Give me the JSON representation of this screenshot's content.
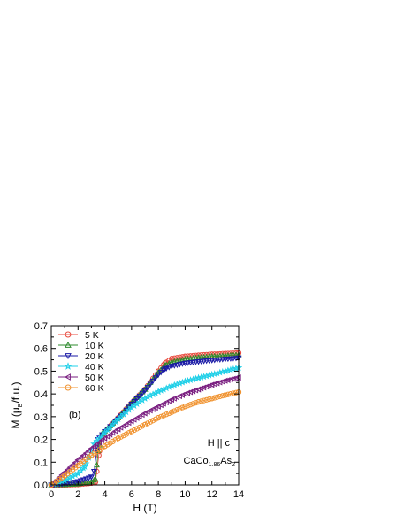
{
  "chart_data": {
    "type": "scatter",
    "title": "",
    "xlabel": "H (T)",
    "ylabel_parts": {
      "pre": "M (",
      "mu": "μ",
      "sub": "B",
      "post": "/f.u.)"
    },
    "xlim": [
      0,
      14
    ],
    "ylim": [
      0,
      0.7
    ],
    "xticks": [
      "0",
      "2",
      "4",
      "6",
      "8",
      "10",
      "12",
      "14"
    ],
    "yticks": [
      "0.0",
      "0.1",
      "0.2",
      "0.3",
      "0.4",
      "0.5",
      "0.6",
      "0.7"
    ],
    "grid": false,
    "legend_placement": "top-left",
    "panel_label": "(b)",
    "field_annotation": "H || c",
    "compound": {
      "parts": [
        "CaCo",
        "1.86",
        "As",
        "2"
      ]
    },
    "series": [
      {
        "name": "5 K",
        "color": "#e8493c",
        "marker": "circle",
        "x": [
          0,
          1,
          2,
          3,
          3.3,
          3.55,
          3.8,
          4.5,
          5,
          6,
          7,
          8,
          8.5,
          9,
          10,
          11,
          12,
          13,
          14
        ],
        "y": [
          0,
          0,
          0.002,
          0.008,
          0.012,
          0.13,
          0.22,
          0.265,
          0.295,
          0.36,
          0.42,
          0.5,
          0.535,
          0.555,
          0.565,
          0.57,
          0.574,
          0.577,
          0.58
        ]
      },
      {
        "name": "10 K",
        "color": "#2e8b2e",
        "marker": "triangle-up",
        "x": [
          0,
          1,
          2,
          3,
          3.3,
          3.5,
          3.8,
          4.5,
          5,
          6,
          7,
          8,
          8.5,
          9,
          10,
          11,
          12,
          13,
          14
        ],
        "y": [
          0,
          0.001,
          0.004,
          0.015,
          0.025,
          0.15,
          0.225,
          0.265,
          0.295,
          0.36,
          0.42,
          0.495,
          0.525,
          0.54,
          0.553,
          0.56,
          0.565,
          0.568,
          0.572
        ]
      },
      {
        "name": "20 K",
        "color": "#1a1aa6",
        "marker": "triangle-down",
        "x": [
          0,
          1,
          2,
          3,
          3.2,
          3.5,
          4,
          5,
          6,
          7,
          8,
          8.5,
          9,
          10,
          11,
          12,
          13,
          14
        ],
        "y": [
          0,
          0.005,
          0.015,
          0.035,
          0.06,
          0.2,
          0.235,
          0.29,
          0.355,
          0.415,
          0.485,
          0.51,
          0.522,
          0.535,
          0.542,
          0.548,
          0.553,
          0.558
        ]
      },
      {
        "name": "40 K",
        "color": "#22d0e8",
        "marker": "star",
        "x": [
          0,
          1,
          2,
          2.5,
          2.8,
          3.2,
          4,
          5,
          6,
          7,
          8,
          9,
          10,
          11,
          12,
          13,
          14
        ],
        "y": [
          0,
          0.02,
          0.05,
          0.08,
          0.12,
          0.18,
          0.23,
          0.29,
          0.34,
          0.38,
          0.41,
          0.435,
          0.455,
          0.47,
          0.485,
          0.5,
          0.515
        ]
      },
      {
        "name": "50 K",
        "color": "#7a1f80",
        "marker": "triangle-left",
        "x": [
          0,
          1,
          2,
          3,
          4,
          5,
          6,
          7,
          8,
          9,
          10,
          11,
          12,
          13,
          14
        ],
        "y": [
          0,
          0.055,
          0.11,
          0.16,
          0.205,
          0.245,
          0.28,
          0.315,
          0.345,
          0.375,
          0.4,
          0.42,
          0.44,
          0.458,
          0.472
        ]
      },
      {
        "name": "60 K",
        "color": "#f0922e",
        "marker": "circle",
        "x": [
          0,
          1,
          2,
          3,
          4,
          5,
          6,
          7,
          8,
          9,
          10,
          11,
          12,
          13,
          14
        ],
        "y": [
          0,
          0.04,
          0.085,
          0.13,
          0.17,
          0.205,
          0.235,
          0.265,
          0.295,
          0.32,
          0.345,
          0.365,
          0.38,
          0.395,
          0.408
        ]
      }
    ]
  }
}
